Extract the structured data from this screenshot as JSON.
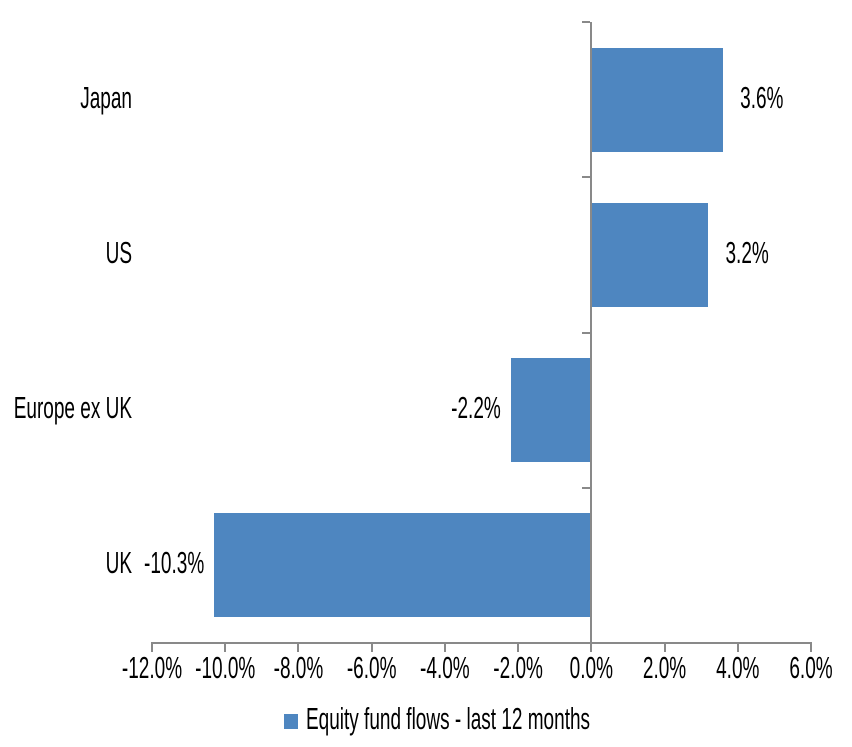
{
  "chart_data": {
    "type": "bar",
    "orientation": "horizontal",
    "title": "",
    "categories": [
      "Japan",
      "US",
      "Europe ex UK",
      "UK"
    ],
    "series": [
      {
        "name": "Equity fund flows - last 12 months",
        "values": [
          3.6,
          3.2,
          -2.2,
          -10.3
        ],
        "data_labels": [
          "3.6%",
          "3.2%",
          "-2.2%",
          "-10.3%"
        ]
      }
    ],
    "xlim": [
      -12,
      6
    ],
    "x_ticks": [
      -12,
      -10,
      -8,
      -6,
      -4,
      -2,
      0,
      2,
      4,
      6
    ],
    "x_tick_labels": [
      "-12.0%",
      "-10.0%",
      "-8.0%",
      "-6.0%",
      "-4.0%",
      "-2.0%",
      "0.0%",
      "2.0%",
      "4.0%",
      "6.0%"
    ],
    "grid": false,
    "legend_position": "bottom",
    "colors": {
      "bar": "#4E86C0",
      "axis": "#898989",
      "text": "#000000",
      "background": "#FFFFFF"
    }
  }
}
